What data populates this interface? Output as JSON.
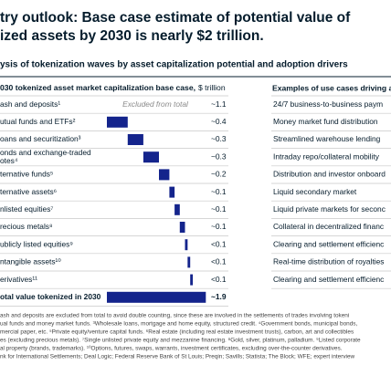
{
  "chart_data": {
    "type": "waterfall",
    "title": [
      "try outlook: Base case estimate of potential value of",
      "ized assets by 2030 is nearly $2 trillion."
    ],
    "subtitle": "ysis of tokenization waves by asset capitalization potential and adoption drivers",
    "header": "030 tokenized asset market capitalization base case,",
    "unit": "$ trillion",
    "excluded_note": "Excluded from total",
    "excluded": [
      0
    ],
    "color": "#14248c",
    "categories": [
      "ash and deposits¹",
      "utual funds and ETFs²",
      "oans and securitization³",
      [
        "onds and exchange-traded",
        "otes⁴"
      ],
      "ternative funds⁵",
      "ternative assets⁶",
      "nlisted equities⁷",
      "recious metals⁸",
      "ublicly listed equities⁹",
      "ntangible assets¹⁰",
      "erivatives¹¹"
    ],
    "values": [
      1.1,
      0.4,
      0.3,
      0.3,
      0.2,
      0.1,
      0.1,
      0.1,
      0.05,
      0.05,
      0.05
    ],
    "value_labels": [
      "~1.1",
      "~0.4",
      "~0.3",
      "~0.3",
      "~0.2",
      "~0.1",
      "~0.1",
      "~0.1",
      "<0.1",
      "<0.1",
      "<0.1"
    ],
    "total": {
      "label": "otal value tokenized in 2030",
      "value": 1.9,
      "value_label": "~1.9"
    },
    "use_case_header": "Examples of use cases driving a",
    "use_cases": [
      "24/7 business-to-business paym",
      "Money market fund distribution",
      "Streamlined warehouse lending",
      "Intraday repo/collateral mobility",
      "Distribution and investor onboard",
      "Liquid secondary market",
      "Liquid private markets for seconc",
      "Collateral in decentralized financ",
      "Clearing and settlement efficienc",
      "Real-time distribution of royalties",
      "Clearing and settlement efficienc"
    ],
    "footnotes": [
      "ash and deposits are excluded from total to avoid double counting, since these are involved in the settlements of trades involving tokeni",
      "ual funds and money market funds. ³Wholesale loans, mortgage and home equity, structured credit. ⁴Government bonds, municipal bonds,",
      "mercial paper, etc. ⁵Private equity/venture capital funds. ⁶Real estate (including real estate investment trusts), carbon, art and collectibles",
      "es (excluding precious metals). ⁷Single unlisted private equity and mezzanine financing. ⁸Gold, silver, platinum, palladium. ⁹Listed corporate",
      "al property (brands, trademarks). ¹⁰Options, futures, swaps, warrants, investment certificates, excluding over-the-counter derivatives.",
      "nk for International Settlements; Deal Logic; Federal Reserve Bank of St Louis; Preqin; Savills; Statista; The Block; WFE; expert interview"
    ]
  }
}
